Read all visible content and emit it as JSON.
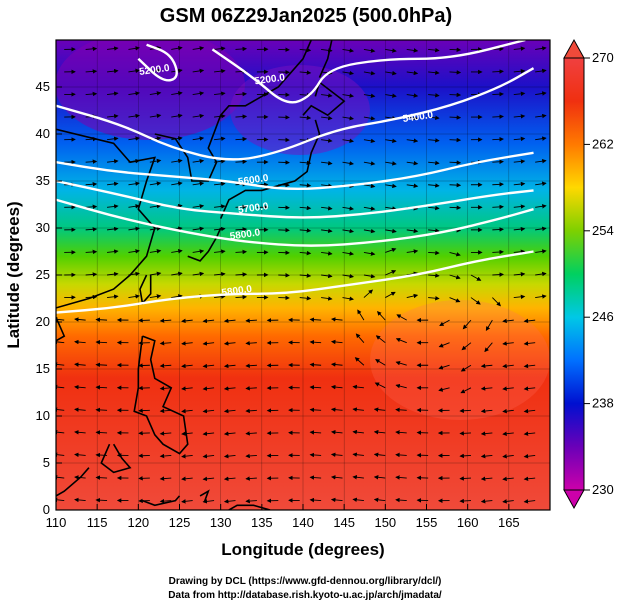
{
  "title": "GSM 06Z29Jan2025 (500.0hPa)",
  "x_axis": {
    "label": "Longitude (degrees)",
    "range": [
      110,
      170
    ],
    "ticks": [
      "110",
      "115",
      "120",
      "125",
      "130",
      "135",
      "140",
      "145",
      "150",
      "155",
      "160",
      "165"
    ]
  },
  "y_axis": {
    "label": "Latitude  (degrees)",
    "range": [
      0,
      50
    ],
    "ticks": [
      "0",
      "5",
      "10",
      "15",
      "20",
      "25",
      "30",
      "35",
      "40",
      "45"
    ]
  },
  "colorbar": {
    "range": [
      230,
      270
    ],
    "ticks": [
      "230",
      "238",
      "246",
      "254",
      "262",
      "270"
    ],
    "colors": [
      "#cc00aa",
      "#6a00b8",
      "#0010d0",
      "#0070ff",
      "#00c8e6",
      "#00d060",
      "#7ed000",
      "#ffd800",
      "#ff7a00",
      "#f03010",
      "#f04040"
    ]
  },
  "contours": [
    {
      "label": "5200.0",
      "points": [
        [
          120,
          48
        ],
        [
          123,
          45.5
        ],
        [
          125,
          46
        ],
        [
          124,
          48.5
        ],
        [
          121,
          49.5
        ]
      ]
    },
    {
      "label": "5200.0",
      "points": [
        [
          129,
          49
        ],
        [
          134,
          46
        ],
        [
          138,
          43
        ],
        [
          141,
          44
        ],
        [
          143,
          47
        ],
        [
          150,
          48
        ],
        [
          158,
          48
        ],
        [
          167,
          50
        ]
      ]
    },
    {
      "label": "5400.0",
      "points": [
        [
          110,
          43
        ],
        [
          118,
          41
        ],
        [
          124,
          38.5
        ],
        [
          131,
          37
        ],
        [
          137,
          38
        ],
        [
          144,
          40.5
        ],
        [
          151,
          41.5
        ],
        [
          158,
          43
        ],
        [
          164,
          45
        ],
        [
          168,
          47
        ]
      ]
    },
    {
      "label": "5600.0",
      "points": [
        [
          110,
          37
        ],
        [
          117,
          36
        ],
        [
          124,
          35.5
        ],
        [
          131,
          35
        ],
        [
          138,
          34
        ],
        [
          146,
          34.5
        ],
        [
          154,
          35.5
        ],
        [
          161,
          37
        ],
        [
          168,
          38
        ]
      ]
    },
    {
      "label": "5700.0",
      "points": [
        [
          110,
          35
        ],
        [
          118,
          33.5
        ],
        [
          125,
          32
        ],
        [
          132,
          31.5
        ],
        [
          140,
          31
        ],
        [
          148,
          31.5
        ],
        [
          156,
          32.5
        ],
        [
          163,
          33.5
        ],
        [
          168,
          34
        ]
      ]
    },
    {
      "label": "5800.0",
      "points": [
        [
          110,
          33
        ],
        [
          118,
          31
        ],
        [
          126,
          29.5
        ],
        [
          133,
          28.5
        ],
        [
          141,
          28
        ],
        [
          149,
          28.5
        ],
        [
          157,
          29.5
        ],
        [
          164,
          31
        ],
        [
          168,
          32
        ]
      ]
    },
    {
      "label": "5800.0",
      "points": [
        [
          110,
          21
        ],
        [
          117,
          21.5
        ],
        [
          124,
          22.5
        ],
        [
          131,
          23
        ],
        [
          138,
          23
        ],
        [
          146,
          24
        ],
        [
          154,
          25
        ],
        [
          161,
          26.5
        ],
        [
          168,
          27.5
        ]
      ]
    }
  ],
  "contour_labels": [
    {
      "text": "5200.0",
      "pos": [
        122,
        46.5
      ]
    },
    {
      "text": "5200.0",
      "pos": [
        136,
        45.5
      ]
    },
    {
      "text": "5400.0",
      "pos": [
        154,
        41.5
      ]
    },
    {
      "text": "5600.0",
      "pos": [
        134,
        34.8
      ]
    },
    {
      "text": "5700.0",
      "pos": [
        134,
        31.8
      ]
    },
    {
      "text": "5800.0",
      "pos": [
        133,
        29
      ]
    },
    {
      "text": "5800.0",
      "pos": [
        132,
        23
      ]
    }
  ],
  "credits": {
    "line1": "Drawing by DCL (https://www.gfd-dennou.org/library/dcl/)",
    "line2": "Data from http://database.rish.kyoto-u.ac.jp/arch/jmadata/"
  }
}
